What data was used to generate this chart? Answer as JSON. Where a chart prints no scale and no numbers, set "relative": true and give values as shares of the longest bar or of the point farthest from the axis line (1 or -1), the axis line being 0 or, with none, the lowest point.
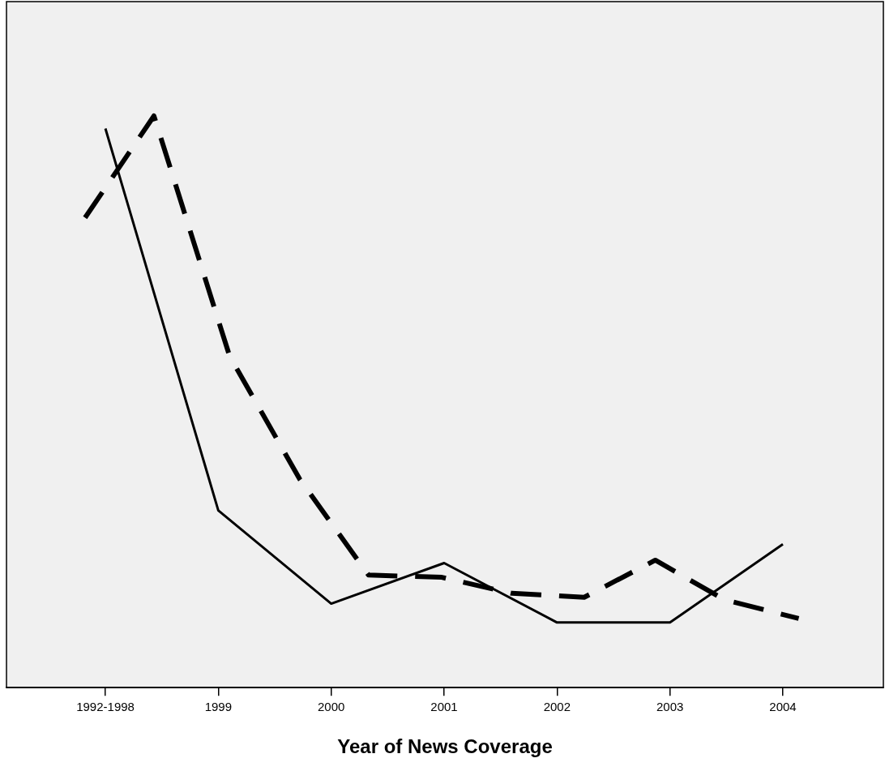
{
  "chart_data": {
    "type": "line",
    "xlabel": "Year of News Coverage",
    "relative": true,
    "legend": false,
    "grid": false,
    "marker": "none",
    "xlim": [
      1997.124,
      2004.89
    ],
    "xticks": [
      {
        "value": 1998,
        "label": "1992-1998"
      },
      1999,
      2000,
      2001,
      2002,
      2003,
      2004
    ],
    "series": [
      {
        "color": "#000000",
        "line_style": "solid",
        "x": [
          1998,
          1999,
          2000,
          2001,
          2002,
          2003,
          2004
        ],
        "values": [
          0.978,
          0.31,
          0.147,
          0.218,
          0.114,
          0.114,
          0.251
        ]
      },
      {
        "color": "#000000",
        "line_style": "dashed",
        "x": [
          1997.82,
          1998.43,
          1999.1,
          1999.72,
          2000.33,
          2000.98,
          2001.6,
          2002.24,
          2002.87,
          2003.48,
          2004.14
        ],
        "values": [
          0.822,
          1,
          0.58,
          0.365,
          0.197,
          0.193,
          0.165,
          0.158,
          0.223,
          0.154,
          0.121
        ]
      }
    ]
  }
}
